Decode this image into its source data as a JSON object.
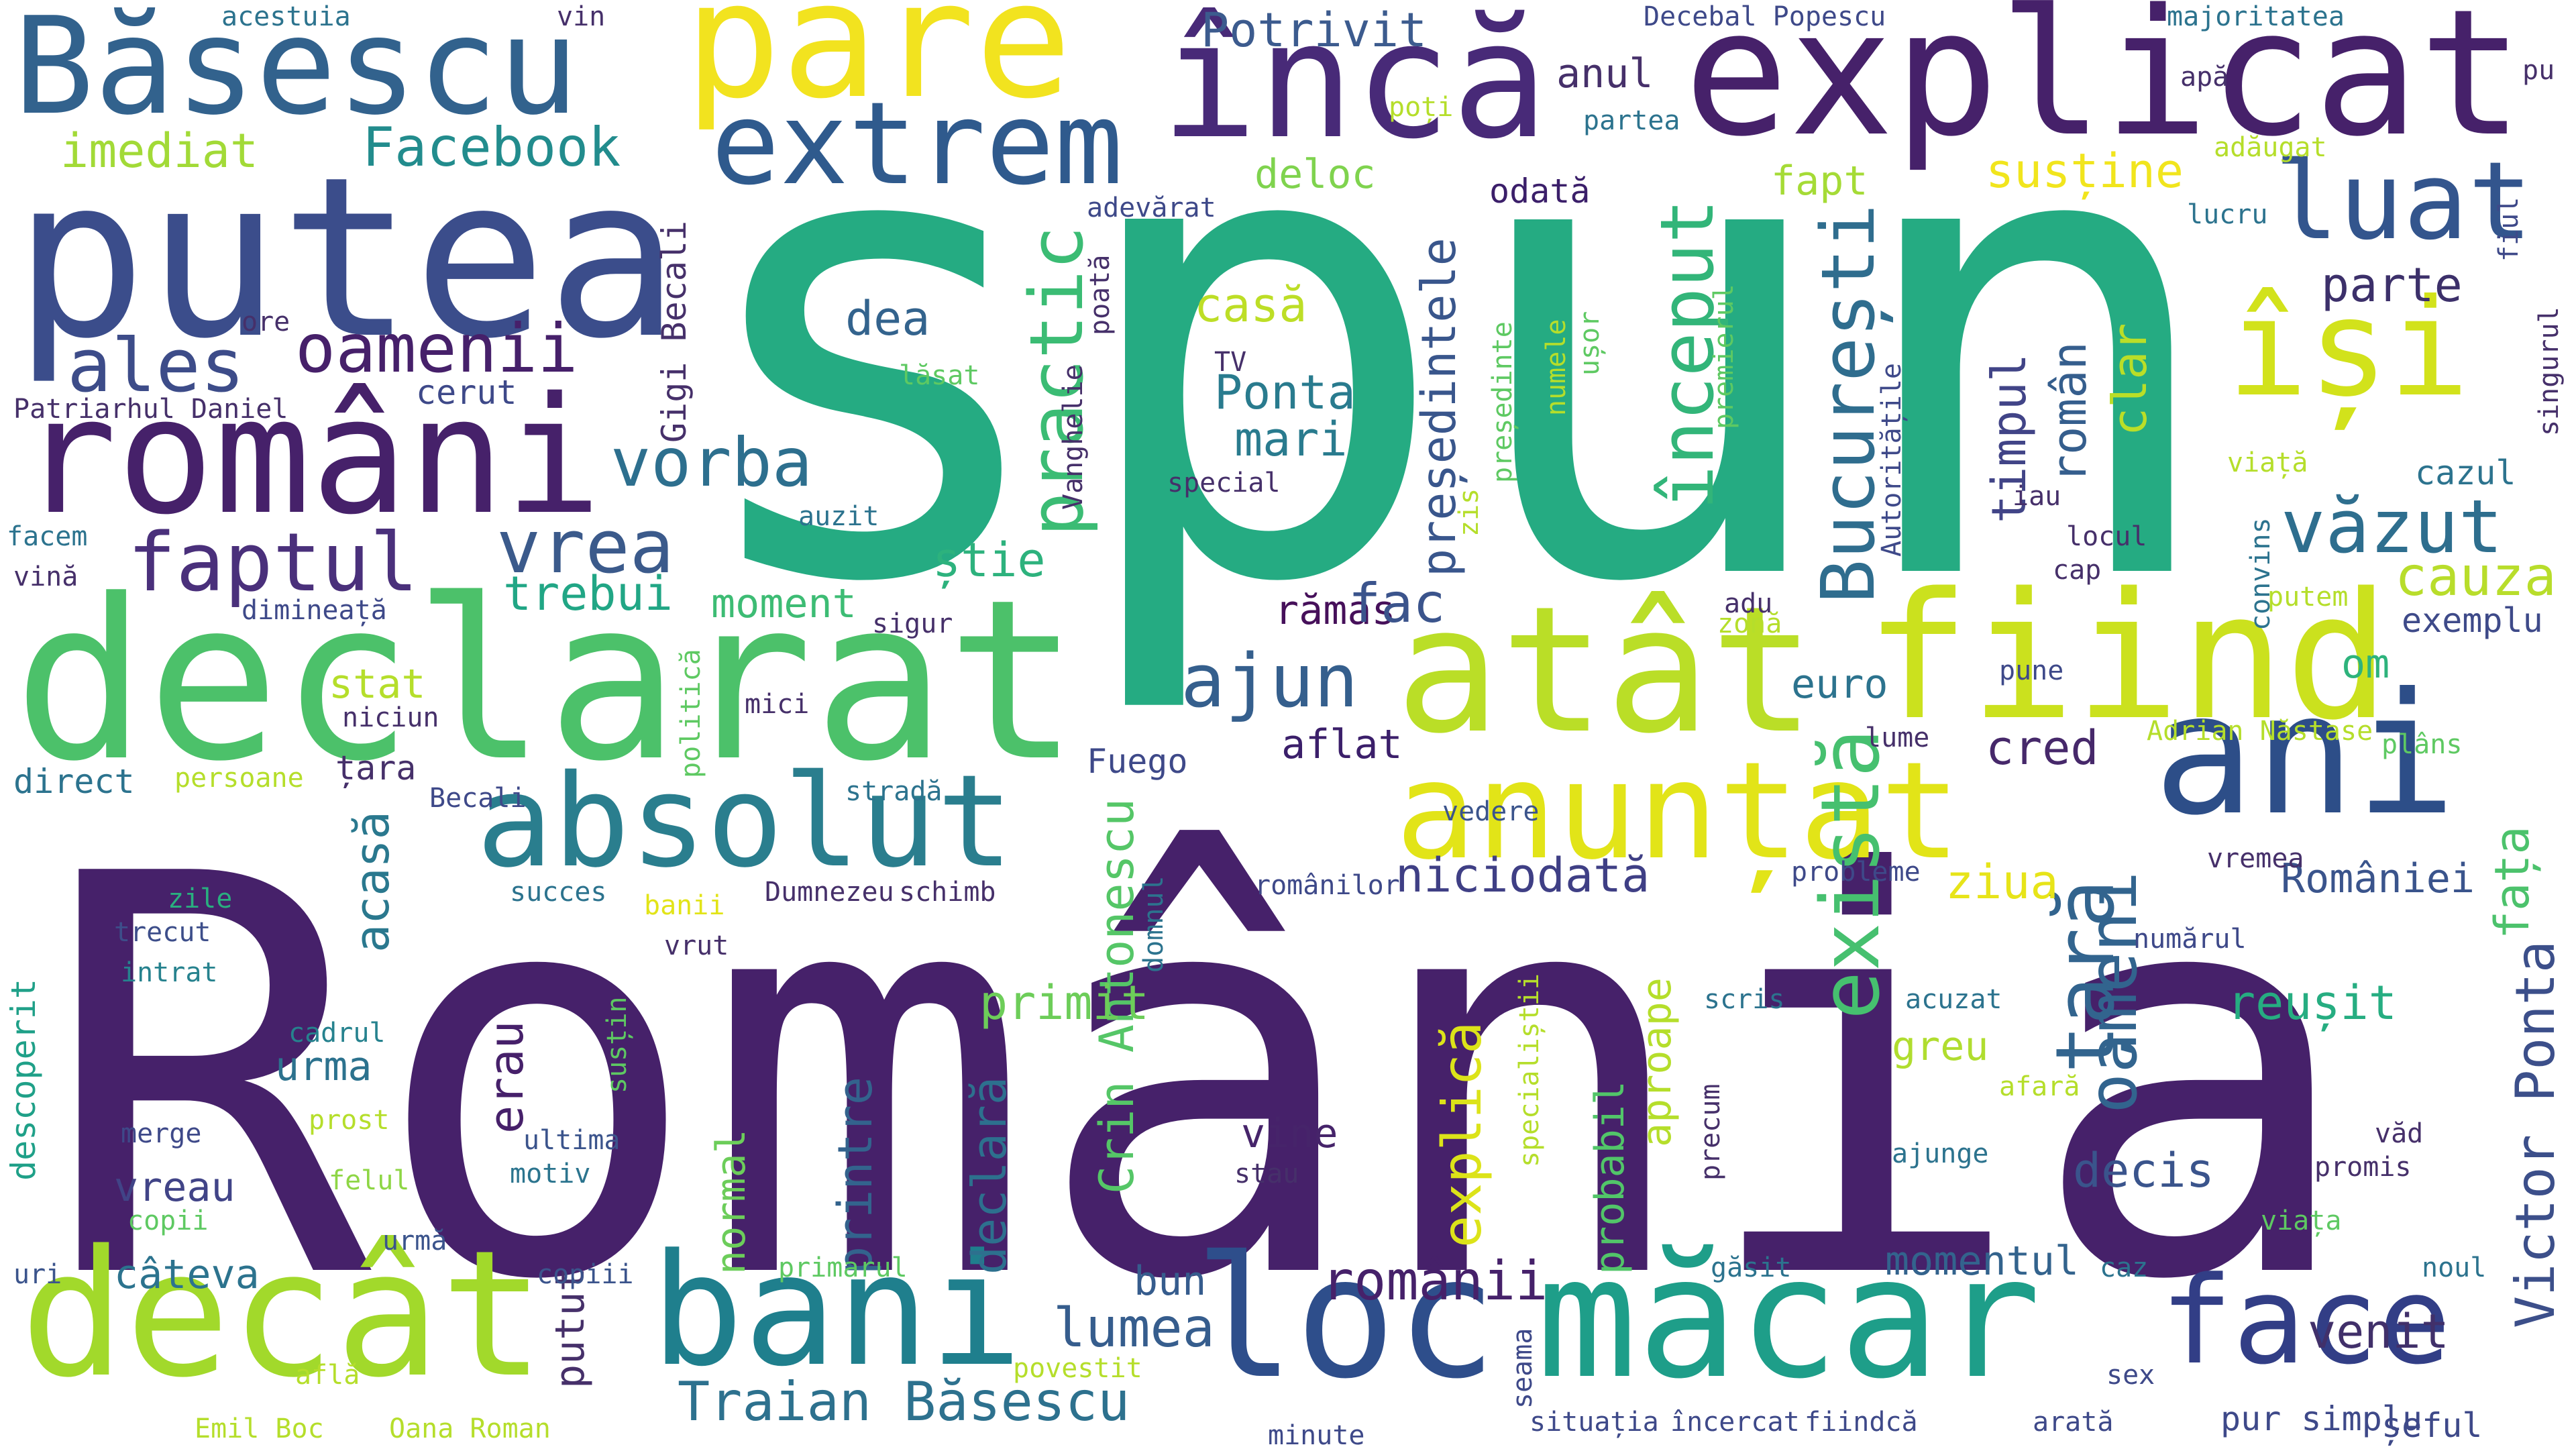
{
  "word_cloud": {
    "words": [
      {
        "text": "România",
        "color": "#46216a"
      },
      {
        "text": "spun",
        "color": "#25ab82"
      },
      {
        "text": "declarat",
        "color": "#4cc16a"
      },
      {
        "text": "putea",
        "color": "#3b4d8b"
      },
      {
        "text": "explicat",
        "color": "#46216a"
      },
      {
        "text": "români",
        "color": "#46216a"
      },
      {
        "text": "Băsescu",
        "color": "#32628d"
      },
      {
        "text": "pare",
        "color": "#f2e31f"
      },
      {
        "text": "încă",
        "color": "#482a78"
      },
      {
        "text": "atât",
        "color": "#bade27"
      },
      {
        "text": "fiind",
        "color": "#cbe11e"
      },
      {
        "text": "ani",
        "color": "#2d4e88"
      },
      {
        "text": "decât",
        "color": "#a2d92b"
      },
      {
        "text": "măcar",
        "color": "#1e9e89"
      },
      {
        "text": "bani",
        "color": "#1f7f8d"
      },
      {
        "text": "loc",
        "color": "#2e4e8b"
      },
      {
        "text": "face",
        "color": "#323e86"
      },
      {
        "text": "anunțat",
        "color": "#e2e418"
      },
      {
        "text": "absolut",
        "color": "#2a7e8e"
      },
      {
        "text": "extrem",
        "color": "#2f5a8d"
      },
      {
        "text": "își",
        "color": "#d2e21b"
      },
      {
        "text": "luat",
        "color": "#33558d"
      },
      {
        "text": "vorba",
        "color": "#2d6f8e"
      },
      {
        "text": "oamenii",
        "color": "#46206a"
      },
      {
        "text": "ales",
        "color": "#3d4c89"
      },
      {
        "text": "faptul",
        "color": "#4a307b"
      },
      {
        "text": "vrea",
        "color": "#3b5a8b"
      },
      {
        "text": "început",
        "color": "#32b579"
      },
      {
        "text": "București",
        "color": "#2f6d8e"
      },
      {
        "text": "practic",
        "color": "#3bbc74"
      },
      {
        "text": "ajun",
        "color": "#355f8d"
      },
      {
        "text": "văzut",
        "color": "#2e6e8e"
      },
      {
        "text": "cauza",
        "color": "#b8dd2b"
      },
      {
        "text": "există",
        "color": "#46c06f"
      },
      {
        "text": "țară",
        "color": "#32648e"
      },
      {
        "text": "oameni",
        "color": "#32648e"
      },
      {
        "text": "Crin Antonescu",
        "color": "#55c667"
      },
      {
        "text": "Victor Ponta",
        "color": "#3c4f8a"
      },
      {
        "text": "Traian Băsescu",
        "color": "#2d718e"
      },
      {
        "text": "explică",
        "color": "#dce319"
      },
      {
        "text": "printre",
        "color": "#33638d"
      },
      {
        "text": "declară",
        "color": "#2d708e"
      },
      {
        "text": "normal",
        "color": "#6ccd5a"
      },
      {
        "text": "românii",
        "color": "#46216a"
      },
      {
        "text": "lumea",
        "color": "#365d8d"
      },
      {
        "text": "venit",
        "color": "#41306a"
      },
      {
        "text": "niciodată",
        "color": "#3f3f85"
      },
      {
        "text": "cred",
        "color": "#46286a"
      },
      {
        "text": "ziua",
        "color": "#e7e419"
      },
      {
        "text": "României",
        "color": "#3a548c"
      },
      {
        "text": "fața",
        "color": "#4cc26c"
      },
      {
        "text": "primit",
        "color": "#6dcd59"
      },
      {
        "text": "reușit",
        "color": "#26ad81"
      },
      {
        "text": "decis",
        "color": "#3a548c"
      },
      {
        "text": "momentul",
        "color": "#33638d"
      },
      {
        "text": "Facebook",
        "color": "#228c8d"
      },
      {
        "text": "imediat",
        "color": "#a2da37"
      },
      {
        "text": "Potrivit",
        "color": "#3c5b8e"
      },
      {
        "text": "anul",
        "color": "#46306a"
      },
      {
        "text": "susține",
        "color": "#f1e51d"
      },
      {
        "text": "deloc",
        "color": "#7fd34e"
      },
      {
        "text": "fapt",
        "color": "#a5db36"
      },
      {
        "text": "odată",
        "color": "#3b1f6a"
      },
      {
        "text": "dea",
        "color": "#33638d"
      },
      {
        "text": "casă",
        "color": "#bdde26"
      },
      {
        "text": "Ponta",
        "color": "#297b8e"
      },
      {
        "text": "mari",
        "color": "#297b8e"
      },
      {
        "text": "parte",
        "color": "#3c306a"
      },
      {
        "text": "timpul",
        "color": "#414487"
      },
      {
        "text": "român",
        "color": "#355e8d"
      },
      {
        "text": "clar",
        "color": "#bade28"
      },
      {
        "text": "președintele",
        "color": "#39568c"
      },
      {
        "text": "trebui",
        "color": "#21a685"
      },
      {
        "text": "moment",
        "color": "#3dbc74"
      },
      {
        "text": "rămas",
        "color": "#46105a"
      },
      {
        "text": "fac",
        "color": "#3b548c"
      },
      {
        "text": "știe",
        "color": "#2db27d"
      },
      {
        "text": "stat",
        "color": "#b5de2b"
      },
      {
        "text": "euro",
        "color": "#2c738e"
      },
      {
        "text": "om",
        "color": "#2eb37c"
      },
      {
        "text": "exemplu",
        "color": "#3e4a89"
      },
      {
        "text": "cazul",
        "color": "#2c738e"
      },
      {
        "text": "Fuego",
        "color": "#3e4989"
      },
      {
        "text": "aflat",
        "color": "#3b1f6a"
      },
      {
        "text": "acasă",
        "color": "#2a788e"
      },
      {
        "text": "urma",
        "color": "#2c728e"
      },
      {
        "text": "erau",
        "color": "#46206a"
      },
      {
        "text": "vine",
        "color": "#46246a"
      },
      {
        "text": "bun",
        "color": "#365c8d"
      },
      {
        "text": "greu",
        "color": "#b0dd2f"
      },
      {
        "text": "aproape",
        "color": "#b5de2b"
      },
      {
        "text": "probabil",
        "color": "#52c569"
      },
      {
        "text": "câteva",
        "color": "#2c738e"
      },
      {
        "text": "vreau",
        "color": "#414487"
      },
      {
        "text": "putut",
        "color": "#46306a"
      },
      {
        "text": "ultima",
        "color": "#3b548c"
      },
      {
        "text": "motiv",
        "color": "#2b748e"
      },
      {
        "text": "vedere",
        "color": "#3b548c"
      },
      {
        "text": "descoperit",
        "color": "#1fa088"
      },
      {
        "text": "zile",
        "color": "#29af7f"
      },
      {
        "text": "trecut",
        "color": "#3d4e8a"
      },
      {
        "text": "intrat",
        "color": "#26828e"
      },
      {
        "text": "cadrul",
        "color": "#26828e"
      },
      {
        "text": "merge",
        "color": "#3e4989"
      },
      {
        "text": "prost",
        "color": "#b5de2b"
      },
      {
        "text": "felul",
        "color": "#8ed645"
      },
      {
        "text": "copii",
        "color": "#5ec962"
      },
      {
        "text": "urmă",
        "color": "#3b548c"
      },
      {
        "text": "uri",
        "color": "#3b548c"
      },
      {
        "text": "copiii",
        "color": "#3b548c"
      },
      {
        "text": "primarul",
        "color": "#5ec962"
      },
      {
        "text": "află",
        "color": "#b5de2b"
      },
      {
        "text": "Emil Boc",
        "color": "#b5de2b"
      },
      {
        "text": "Oana Roman",
        "color": "#b5de2b"
      },
      {
        "text": "povestit",
        "color": "#b5de2b"
      },
      {
        "text": "minute",
        "color": "#3e4989"
      },
      {
        "text": "seama",
        "color": "#3e4989"
      },
      {
        "text": "situația",
        "color": "#3e4989"
      },
      {
        "text": "încercat",
        "color": "#3e4989"
      },
      {
        "text": "fiindcă",
        "color": "#3e4989"
      },
      {
        "text": "arată",
        "color": "#3e4989"
      },
      {
        "text": "pur simplu",
        "color": "#3e4989"
      },
      {
        "text": "șeful",
        "color": "#3e4989"
      },
      {
        "text": "sex",
        "color": "#3e4989"
      },
      {
        "text": "noul",
        "color": "#2c738e"
      },
      {
        "text": "caz",
        "color": "#2c738e"
      },
      {
        "text": "găsit",
        "color": "#2c738e"
      },
      {
        "text": "viața",
        "color": "#5ec962"
      },
      {
        "text": "ajunge",
        "color": "#2c738e"
      },
      {
        "text": "precum",
        "color": "#46306a"
      },
      {
        "text": "specialiștii",
        "color": "#b5de2b"
      },
      {
        "text": "afară",
        "color": "#b5de2b"
      },
      {
        "text": "acuzat",
        "color": "#2c738e"
      },
      {
        "text": "scris",
        "color": "#2c738e"
      },
      {
        "text": "numărul",
        "color": "#3e4989"
      },
      {
        "text": "vremea",
        "color": "#46306a"
      },
      {
        "text": "probleme",
        "color": "#3e4989"
      },
      {
        "text": "românilor",
        "color": "#3e4989"
      },
      {
        "text": "domnul",
        "color": "#2c738e"
      },
      {
        "text": "Dumnezeu",
        "color": "#46306a"
      },
      {
        "text": "schimb",
        "color": "#46306a"
      },
      {
        "text": "vrut",
        "color": "#46306a"
      },
      {
        "text": "banii",
        "color": "#e2e418"
      },
      {
        "text": "succes",
        "color": "#2c738e"
      },
      {
        "text": "susțin",
        "color": "#5ec962"
      },
      {
        "text": "stau",
        "color": "#46306a"
      },
      {
        "text": "promis",
        "color": "#46306a"
      },
      {
        "text": "văd",
        "color": "#46306a"
      },
      {
        "text": "plâns",
        "color": "#5ec962"
      },
      {
        "text": "Adrian Năstase",
        "color": "#b5de2b"
      },
      {
        "text": "lume",
        "color": "#46306a"
      },
      {
        "text": "pune",
        "color": "#3e4989"
      },
      {
        "text": "zonă",
        "color": "#b5de2b"
      },
      {
        "text": "adu",
        "color": "#46306a"
      },
      {
        "text": "putem",
        "color": "#b5de2b"
      },
      {
        "text": "convins",
        "color": "#2c738e"
      },
      {
        "text": "cap",
        "color": "#46306a"
      },
      {
        "text": "locul",
        "color": "#46306a"
      },
      {
        "text": "iau",
        "color": "#46306a"
      },
      {
        "text": "viață",
        "color": "#b5de2b"
      },
      {
        "text": "Autoritățile",
        "color": "#3e4989"
      },
      {
        "text": "premierul",
        "color": "#5ec962"
      },
      {
        "text": "ușor",
        "color": "#5ec962"
      },
      {
        "text": "numele",
        "color": "#b5de2b"
      },
      {
        "text": "președinte",
        "color": "#5ec962"
      },
      {
        "text": "zis",
        "color": "#b5de2b"
      },
      {
        "text": "sigur",
        "color": "#46306a"
      },
      {
        "text": "auzit",
        "color": "#2c738e"
      },
      {
        "text": "special",
        "color": "#46306a"
      },
      {
        "text": "TV",
        "color": "#46306a"
      },
      {
        "text": "lăsat",
        "color": "#5ec962"
      },
      {
        "text": "Vanghelie",
        "color": "#46306a"
      },
      {
        "text": "poată",
        "color": "#46306a"
      },
      {
        "text": "adevărat",
        "color": "#3e4989"
      },
      {
        "text": "Gigi Becali",
        "color": "#46306a"
      },
      {
        "text": "Becali",
        "color": "#3e4989"
      },
      {
        "text": "politică",
        "color": "#5ec962"
      },
      {
        "text": "stradă",
        "color": "#2c738e"
      },
      {
        "text": "mici",
        "color": "#46306a"
      },
      {
        "text": "persoane",
        "color": "#b5de2b"
      },
      {
        "text": "direct",
        "color": "#2c738e"
      },
      {
        "text": "niciun",
        "color": "#46306a"
      },
      {
        "text": "țara",
        "color": "#46306a"
      },
      {
        "text": "dimineață",
        "color": "#3e4989"
      },
      {
        "text": "vină",
        "color": "#46306a"
      },
      {
        "text": "facem",
        "color": "#2c738e"
      },
      {
        "text": "Patriarhul Daniel",
        "color": "#46306a"
      },
      {
        "text": "cerut",
        "color": "#3e4989"
      },
      {
        "text": "ore",
        "color": "#46306a"
      },
      {
        "text": "acestuia",
        "color": "#2c738e"
      },
      {
        "text": "vin",
        "color": "#46306a"
      },
      {
        "text": "Decebal Popescu",
        "color": "#3e4989"
      },
      {
        "text": "majoritatea",
        "color": "#2c738e"
      },
      {
        "text": "apă",
        "color": "#46306a"
      },
      {
        "text": "pu",
        "color": "#46306a"
      },
      {
        "text": "poți",
        "color": "#b5de2b"
      },
      {
        "text": "partea",
        "color": "#2c738e"
      },
      {
        "text": "adăugat",
        "color": "#b5de2b"
      },
      {
        "text": "lucru",
        "color": "#2c738e"
      },
      {
        "text": "fiul",
        "color": "#3e4989"
      },
      {
        "text": "singurul",
        "color": "#46306a"
      }
    ]
  }
}
